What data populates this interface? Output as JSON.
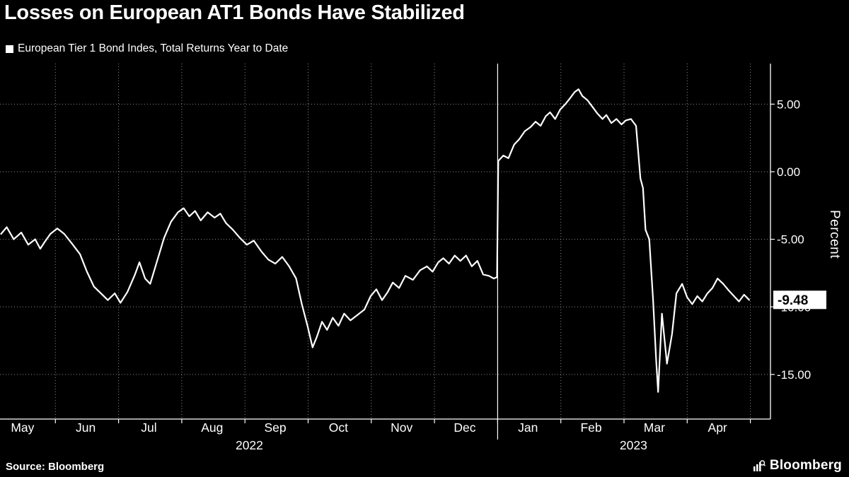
{
  "meta": {
    "background": "#000000",
    "foreground": "#ffffff",
    "line_color": "#ffffff"
  },
  "header": {
    "title": "Losses on European AT1 Bonds Have Stabilized"
  },
  "legend": {
    "label": "European Tier 1 Bond Indes, Total Returns Year to Date",
    "marker_color": "#ffffff"
  },
  "axis": {
    "ylabel": "Percent"
  },
  "footer": {
    "source": "Source: Bloomberg",
    "brand": "Bloomberg"
  },
  "chart_data": {
    "type": "line",
    "title": "Losses on European AT1 Bonds Have Stabilized",
    "series_name": "European Tier 1 Bond Indes, Total Returns Year to Date",
    "ylabel": "Percent",
    "x_units": "months since 2022-05-01",
    "ylim": [
      -18.3,
      8.0
    ],
    "xlim": [
      0,
      12.15
    ],
    "grid": "dotted",
    "line_color": "#ffffff",
    "y_ticks": [
      5,
      0,
      -5,
      -10,
      -15
    ],
    "y_tick_labels": [
      "5.00",
      "0.00",
      "-5.00",
      "-10.00",
      "-15.00"
    ],
    "x_ticks": [
      {
        "m": 0.48,
        "label": "May"
      },
      {
        "m": 1.48,
        "label": "Jun"
      },
      {
        "m": 2.48,
        "label": "Jul"
      },
      {
        "m": 3.48,
        "label": "Aug"
      },
      {
        "m": 4.48,
        "label": "Sep"
      },
      {
        "m": 5.48,
        "label": "Oct"
      },
      {
        "m": 6.48,
        "label": "Nov"
      },
      {
        "m": 7.48,
        "label": "Dec"
      },
      {
        "m": 8.48,
        "label": "Jan"
      },
      {
        "m": 9.48,
        "label": "Feb"
      },
      {
        "m": 10.48,
        "label": "Mar"
      },
      {
        "m": 11.48,
        "label": "Apr"
      }
    ],
    "year_labels": [
      {
        "m": 4.07,
        "label": "2022"
      },
      {
        "m": 10.15,
        "label": "2023"
      }
    ],
    "year_separator_m": 8,
    "last_value": -9.48,
    "last_value_label": "-9.48",
    "points": [
      [
        0.14,
        -4.6
      ],
      [
        0.23,
        -4.1
      ],
      [
        0.34,
        -5.0
      ],
      [
        0.46,
        -4.5
      ],
      [
        0.57,
        -5.4
      ],
      [
        0.68,
        -5.0
      ],
      [
        0.76,
        -5.7
      ],
      [
        0.83,
        -5.2
      ],
      [
        0.92,
        -4.6
      ],
      [
        1.03,
        -4.2
      ],
      [
        1.14,
        -4.6
      ],
      [
        1.26,
        -5.3
      ],
      [
        1.39,
        -6.1
      ],
      [
        1.5,
        -7.4
      ],
      [
        1.61,
        -8.5
      ],
      [
        1.72,
        -9.0
      ],
      [
        1.83,
        -9.5
      ],
      [
        1.94,
        -9.0
      ],
      [
        2.03,
        -9.7
      ],
      [
        2.14,
        -8.9
      ],
      [
        2.26,
        -7.6
      ],
      [
        2.33,
        -6.7
      ],
      [
        2.42,
        -7.9
      ],
      [
        2.5,
        -8.3
      ],
      [
        2.61,
        -6.6
      ],
      [
        2.72,
        -4.9
      ],
      [
        2.83,
        -3.7
      ],
      [
        2.94,
        -3.0
      ],
      [
        3.03,
        -2.7
      ],
      [
        3.12,
        -3.3
      ],
      [
        3.21,
        -2.9
      ],
      [
        3.3,
        -3.6
      ],
      [
        3.41,
        -3.0
      ],
      [
        3.52,
        -3.4
      ],
      [
        3.61,
        -3.1
      ],
      [
        3.7,
        -3.8
      ],
      [
        3.81,
        -4.3
      ],
      [
        3.92,
        -4.9
      ],
      [
        4.03,
        -5.4
      ],
      [
        4.14,
        -5.1
      ],
      [
        4.26,
        -5.9
      ],
      [
        4.37,
        -6.5
      ],
      [
        4.48,
        -6.8
      ],
      [
        4.59,
        -6.3
      ],
      [
        4.7,
        -7.0
      ],
      [
        4.81,
        -7.9
      ],
      [
        4.9,
        -9.8
      ],
      [
        4.99,
        -11.4
      ],
      [
        5.07,
        -13.0
      ],
      [
        5.14,
        -12.2
      ],
      [
        5.22,
        -11.1
      ],
      [
        5.3,
        -11.7
      ],
      [
        5.39,
        -10.8
      ],
      [
        5.48,
        -11.4
      ],
      [
        5.57,
        -10.5
      ],
      [
        5.67,
        -11.0
      ],
      [
        5.78,
        -10.6
      ],
      [
        5.89,
        -10.2
      ],
      [
        5.99,
        -9.2
      ],
      [
        6.08,
        -8.7
      ],
      [
        6.17,
        -9.5
      ],
      [
        6.26,
        -8.9
      ],
      [
        6.34,
        -8.2
      ],
      [
        6.44,
        -8.6
      ],
      [
        6.54,
        -7.7
      ],
      [
        6.66,
        -8.0
      ],
      [
        6.77,
        -7.3
      ],
      [
        6.88,
        -7.0
      ],
      [
        6.97,
        -7.4
      ],
      [
        7.06,
        -6.7
      ],
      [
        7.14,
        -6.4
      ],
      [
        7.23,
        -6.8
      ],
      [
        7.32,
        -6.2
      ],
      [
        7.41,
        -6.6
      ],
      [
        7.5,
        -6.2
      ],
      [
        7.59,
        -7.0
      ],
      [
        7.68,
        -6.6
      ],
      [
        7.77,
        -7.6
      ],
      [
        7.86,
        -7.7
      ],
      [
        7.94,
        -7.9
      ],
      [
        7.99,
        -7.8
      ],
      [
        8.01,
        0.8
      ],
      [
        8.09,
        1.2
      ],
      [
        8.17,
        1.0
      ],
      [
        8.26,
        2.0
      ],
      [
        8.34,
        2.4
      ],
      [
        8.43,
        3.0
      ],
      [
        8.52,
        3.3
      ],
      [
        8.6,
        3.7
      ],
      [
        8.68,
        3.4
      ],
      [
        8.76,
        4.1
      ],
      [
        8.83,
        4.4
      ],
      [
        8.91,
        3.9
      ],
      [
        8.99,
        4.6
      ],
      [
        9.07,
        5.0
      ],
      [
        9.14,
        5.4
      ],
      [
        9.22,
        5.9
      ],
      [
        9.28,
        6.1
      ],
      [
        9.34,
        5.6
      ],
      [
        9.42,
        5.3
      ],
      [
        9.5,
        4.8
      ],
      [
        9.58,
        4.3
      ],
      [
        9.66,
        3.9
      ],
      [
        9.72,
        4.2
      ],
      [
        9.8,
        3.6
      ],
      [
        9.88,
        3.9
      ],
      [
        9.96,
        3.5
      ],
      [
        10.03,
        3.8
      ],
      [
        10.11,
        3.9
      ],
      [
        10.19,
        3.4
      ],
      [
        10.26,
        -0.5
      ],
      [
        10.3,
        -1.2
      ],
      [
        10.34,
        -4.3
      ],
      [
        10.4,
        -5.0
      ],
      [
        10.46,
        -9.5
      ],
      [
        10.51,
        -14.0
      ],
      [
        10.54,
        -16.3
      ],
      [
        10.6,
        -10.5
      ],
      [
        10.68,
        -14.2
      ],
      [
        10.76,
        -12.0
      ],
      [
        10.83,
        -9.0
      ],
      [
        10.92,
        -8.3
      ],
      [
        11.0,
        -9.3
      ],
      [
        11.08,
        -9.8
      ],
      [
        11.16,
        -9.2
      ],
      [
        11.24,
        -9.6
      ],
      [
        11.32,
        -9.0
      ],
      [
        11.4,
        -8.6
      ],
      [
        11.48,
        -7.9
      ],
      [
        11.57,
        -8.3
      ],
      [
        11.66,
        -8.8
      ],
      [
        11.74,
        -9.2
      ],
      [
        11.82,
        -9.6
      ],
      [
        11.9,
        -9.1
      ],
      [
        11.98,
        -9.48
      ]
    ]
  }
}
